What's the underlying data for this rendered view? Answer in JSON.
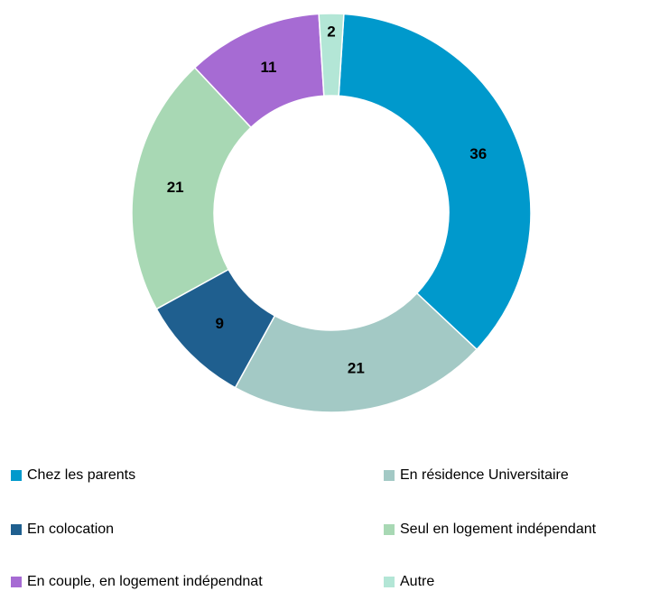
{
  "chart_data": {
    "type": "donut",
    "categories": [
      "Chez les parents",
      "En résidence Universitaire",
      "En colocation",
      "Seul en logement indépendant",
      "En couple, en logement indépendnat",
      "Autre"
    ],
    "values": [
      36,
      21,
      9,
      21,
      11,
      2
    ],
    "colors": [
      "#0099cc",
      "#a3c9c5",
      "#1f5f8f",
      "#a8d8b4",
      "#a66bd3",
      "#b3e6d6"
    ],
    "legend": "bottom"
  }
}
